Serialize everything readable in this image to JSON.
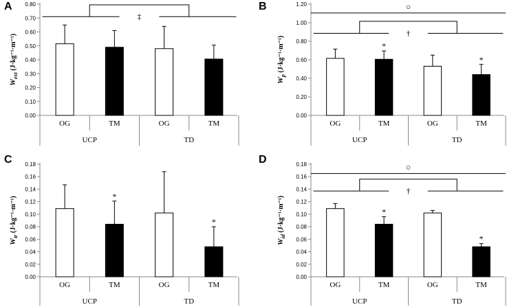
{
  "chart_data": [
    {
      "type": "bar",
      "panel": "A",
      "ylabel_main": "W",
      "ylabel_sub": "ext",
      "ylabel_unit": " (J·kg⁻¹·m⁻¹)",
      "ylim": [
        0,
        0.8
      ],
      "ystep": 0.1,
      "tick_decimals": 2,
      "categories": [
        "OG",
        "TM",
        "OG",
        "TM"
      ],
      "groups": [
        "UCP",
        "TD"
      ],
      "values": [
        0.515,
        0.49,
        0.48,
        0.405
      ],
      "errors": [
        0.135,
        0.12,
        0.16,
        0.1
      ],
      "fills": [
        "#ffffff",
        "#000000",
        "#ffffff",
        "#000000"
      ],
      "bar_marks": [
        "",
        "",
        "",
        ""
      ],
      "brackets": [
        {
          "symbol": "‡",
          "from": [
            0,
            1
          ],
          "to": [
            2,
            3
          ],
          "y": 0.71,
          "top": 0.795
        }
      ],
      "overall_line": null
    },
    {
      "type": "bar",
      "panel": "B",
      "ylabel_main": "W",
      "ylabel_sub": "p",
      "ylabel_unit": " (J·kg⁻¹·m⁻¹)",
      "ylim": [
        0,
        1.2
      ],
      "ystep": 0.2,
      "tick_decimals": 2,
      "categories": [
        "OG",
        "TM",
        "OG",
        "TM"
      ],
      "groups": [
        "UCP",
        "TD"
      ],
      "values": [
        0.615,
        0.605,
        0.53,
        0.44
      ],
      "errors": [
        0.1,
        0.09,
        0.12,
        0.11
      ],
      "fills": [
        "#ffffff",
        "#000000",
        "#ffffff",
        "#000000"
      ],
      "bar_marks": [
        "",
        "*",
        "",
        "*"
      ],
      "brackets": [
        {
          "symbol": "†",
          "from": [
            0,
            1
          ],
          "to": [
            2,
            3
          ],
          "y": 0.885,
          "top": 1.015
        }
      ],
      "overall_line": {
        "symbol": "○",
        "y": 1.105
      }
    },
    {
      "type": "bar",
      "panel": "C",
      "ylabel_main": "W",
      "ylabel_sub": "tr",
      "ylabel_unit": " (J·kg⁻¹·m⁻¹)",
      "ylim": [
        0,
        0.18
      ],
      "ystep": 0.02,
      "tick_decimals": 2,
      "categories": [
        "OG",
        "TM",
        "OG",
        "TM"
      ],
      "groups": [
        "UCP",
        "TD"
      ],
      "values": [
        0.109,
        0.084,
        0.102,
        0.048
      ],
      "errors": [
        0.038,
        0.037,
        0.066,
        0.032
      ],
      "fills": [
        "#ffffff",
        "#000000",
        "#ffffff",
        "#000000"
      ],
      "bar_marks": [
        "",
        "*",
        "",
        "*"
      ],
      "brackets": [],
      "overall_line": null
    },
    {
      "type": "bar",
      "panel": "D",
      "ylabel_main": "W",
      "ylabel_sub": "id",
      "ylabel_unit": " (J·kg⁻¹·m⁻¹)",
      "ylim": [
        0,
        0.18
      ],
      "ystep": 0.02,
      "tick_decimals": 2,
      "categories": [
        "OG",
        "TM",
        "OG",
        "TM"
      ],
      "groups": [
        "UCP",
        "TD"
      ],
      "values": [
        0.109,
        0.084,
        0.102,
        0.048
      ],
      "errors": [
        0.008,
        0.012,
        0.004,
        0.005
      ],
      "fills": [
        "#ffffff",
        "#000000",
        "#ffffff",
        "#000000"
      ],
      "bar_marks": [
        "",
        "*",
        "",
        "*"
      ],
      "brackets": [
        {
          "symbol": "†",
          "from": [
            0,
            1
          ],
          "to": [
            2,
            3
          ],
          "y": 0.137,
          "top": 0.156
        }
      ],
      "overall_line": {
        "symbol": "○",
        "y": 0.165
      }
    }
  ]
}
